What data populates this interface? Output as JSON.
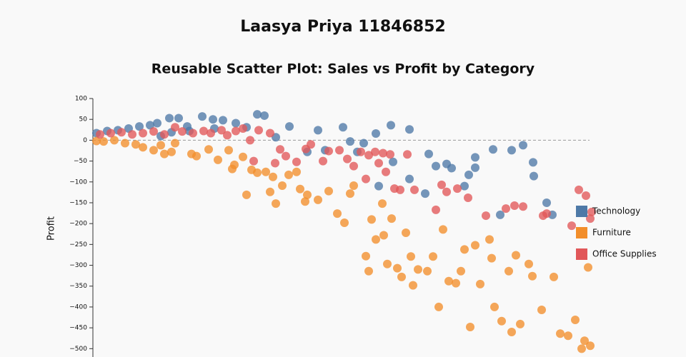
{
  "chart_data": {
    "type": "scatter",
    "title": "Laasya Priya 11846852",
    "subtitle": "Reusable Scatter Plot: Sales vs Profit by Category",
    "y_label": "Profit",
    "xlim": [
      0,
      7000
    ],
    "ylim": [
      -520,
      100
    ],
    "yticks": [
      100,
      50,
      0,
      {
        "value": -50,
        "label": "−50"
      },
      {
        "value": -100,
        "label": "−100"
      },
      {
        "value": -150,
        "label": "−150"
      },
      {
        "value": -200,
        "label": "−200"
      },
      {
        "value": -250,
        "label": "−250"
      },
      {
        "value": -300,
        "label": "−300"
      },
      {
        "value": -350,
        "label": "−350"
      },
      {
        "value": -400,
        "label": "−400"
      },
      {
        "value": -450,
        "label": "−450"
      },
      {
        "value": -500,
        "label": "−500"
      }
    ],
    "zero_line": true,
    "legend": "right",
    "series": [
      {
        "name": "Technology",
        "color": "#4e79a7",
        "x": [
          50,
          200,
          350,
          500,
          650,
          800,
          900,
          1070,
          1200,
          1320,
          1530,
          1680,
          1820,
          2000,
          2300,
          2400,
          2560,
          2750,
          3000,
          3150,
          3250,
          3500,
          3600,
          3700,
          3790,
          3960,
          4000,
          4170,
          4200,
          4430,
          4430,
          4650,
          4700,
          4800,
          4950,
          5020,
          5200,
          5260,
          5350,
          5350,
          5600,
          5700,
          5860,
          6020,
          6160,
          6170,
          6350,
          6430,
          1100,
          1350,
          950,
          2150,
          1700
        ],
        "values": [
          17,
          22,
          24,
          28,
          33,
          36,
          41,
          53,
          53,
          33,
          57,
          50,
          48,
          41,
          62,
          59,
          7,
          33,
          -28,
          24,
          -24,
          31,
          -3,
          -28,
          -7,
          16,
          -110,
          36,
          -52,
          26,
          -93,
          -128,
          -33,
          -62,
          -57,
          -67,
          -110,
          -83,
          -41,
          -66,
          -22,
          -179,
          -24,
          -12,
          -53,
          -86,
          -150,
          -179,
          19,
          22,
          10,
          31,
          28
        ]
      },
      {
        "name": "Furniture",
        "color": "#f28e2b",
        "x": [
          50,
          150,
          300,
          450,
          600,
          700,
          850,
          950,
          1000,
          1100,
          1150,
          1380,
          1450,
          1620,
          1750,
          1900,
          1950,
          1980,
          2100,
          2150,
          2220,
          2300,
          2420,
          2480,
          2520,
          2560,
          2650,
          2740,
          2850,
          2900,
          2970,
          3000,
          3150,
          3300,
          3420,
          3520,
          3600,
          3650,
          3820,
          3860,
          3900,
          3960,
          4050,
          4070,
          4120,
          4180,
          4260,
          4320,
          4380,
          4450,
          4480,
          4550,
          4680,
          4760,
          4840,
          4900,
          4980,
          5080,
          5150,
          5200,
          5280,
          5350,
          5420,
          5550,
          5580,
          5620,
          5720,
          5820,
          5860,
          5920,
          5980,
          6100,
          6150,
          6280,
          6450,
          6540,
          6650,
          6750,
          6840,
          6880,
          6960,
          6930
        ],
        "values": [
          -2,
          -3,
          0,
          -7,
          -10,
          -17,
          -24,
          -12,
          -33,
          -28,
          -7,
          -33,
          -38,
          -22,
          -47,
          -24,
          -69,
          -59,
          -40,
          -131,
          -71,
          -78,
          -76,
          -124,
          -88,
          -152,
          -109,
          -83,
          -76,
          -117,
          -147,
          -131,
          -143,
          -122,
          -176,
          -198,
          -128,
          -109,
          -278,
          -314,
          -190,
          -238,
          -152,
          -228,
          -297,
          -188,
          -307,
          -328,
          -222,
          -279,
          -348,
          -310,
          -314,
          -279,
          -400,
          -214,
          -338,
          -343,
          -314,
          -262,
          -448,
          -252,
          -345,
          -238,
          -283,
          -400,
          -434,
          -314,
          -460,
          -276,
          -441,
          -297,
          -326,
          -407,
          -328,
          -464,
          -469,
          -431,
          -500,
          -481,
          -493,
          -305
        ]
      },
      {
        "name": "Office Supplies",
        "color": "#e15759",
        "x": [
          100,
          250,
          400,
          550,
          700,
          850,
          1000,
          1150,
          1250,
          1400,
          1550,
          1650,
          1800,
          1880,
          2000,
          2100,
          2200,
          2250,
          2320,
          2480,
          2550,
          2620,
          2700,
          2850,
          2980,
          3050,
          3220,
          3300,
          3450,
          3560,
          3650,
          3750,
          3820,
          3860,
          3950,
          4000,
          4060,
          4100,
          4160,
          4220,
          4300,
          4400,
          4500,
          4800,
          4880,
          4950,
          5100,
          5250,
          5500,
          5780,
          5900,
          6020,
          6300,
          6350,
          6700,
          6800,
          6900,
          6960,
          6980
        ],
        "values": [
          14,
          17,
          19,
          14,
          17,
          21,
          14,
          31,
          21,
          17,
          22,
          17,
          24,
          12,
          22,
          28,
          0,
          -50,
          24,
          17,
          -55,
          -22,
          -38,
          -52,
          -21,
          -10,
          -50,
          -26,
          -24,
          -45,
          -62,
          -28,
          -93,
          -36,
          -28,
          -55,
          -31,
          -76,
          -34,
          -116,
          -119,
          -34,
          -119,
          -167,
          -107,
          -124,
          -116,
          -138,
          -181,
          -164,
          -157,
          -159,
          -181,
          -176,
          -205,
          -119,
          -133,
          -188,
          -172
        ]
      }
    ]
  }
}
